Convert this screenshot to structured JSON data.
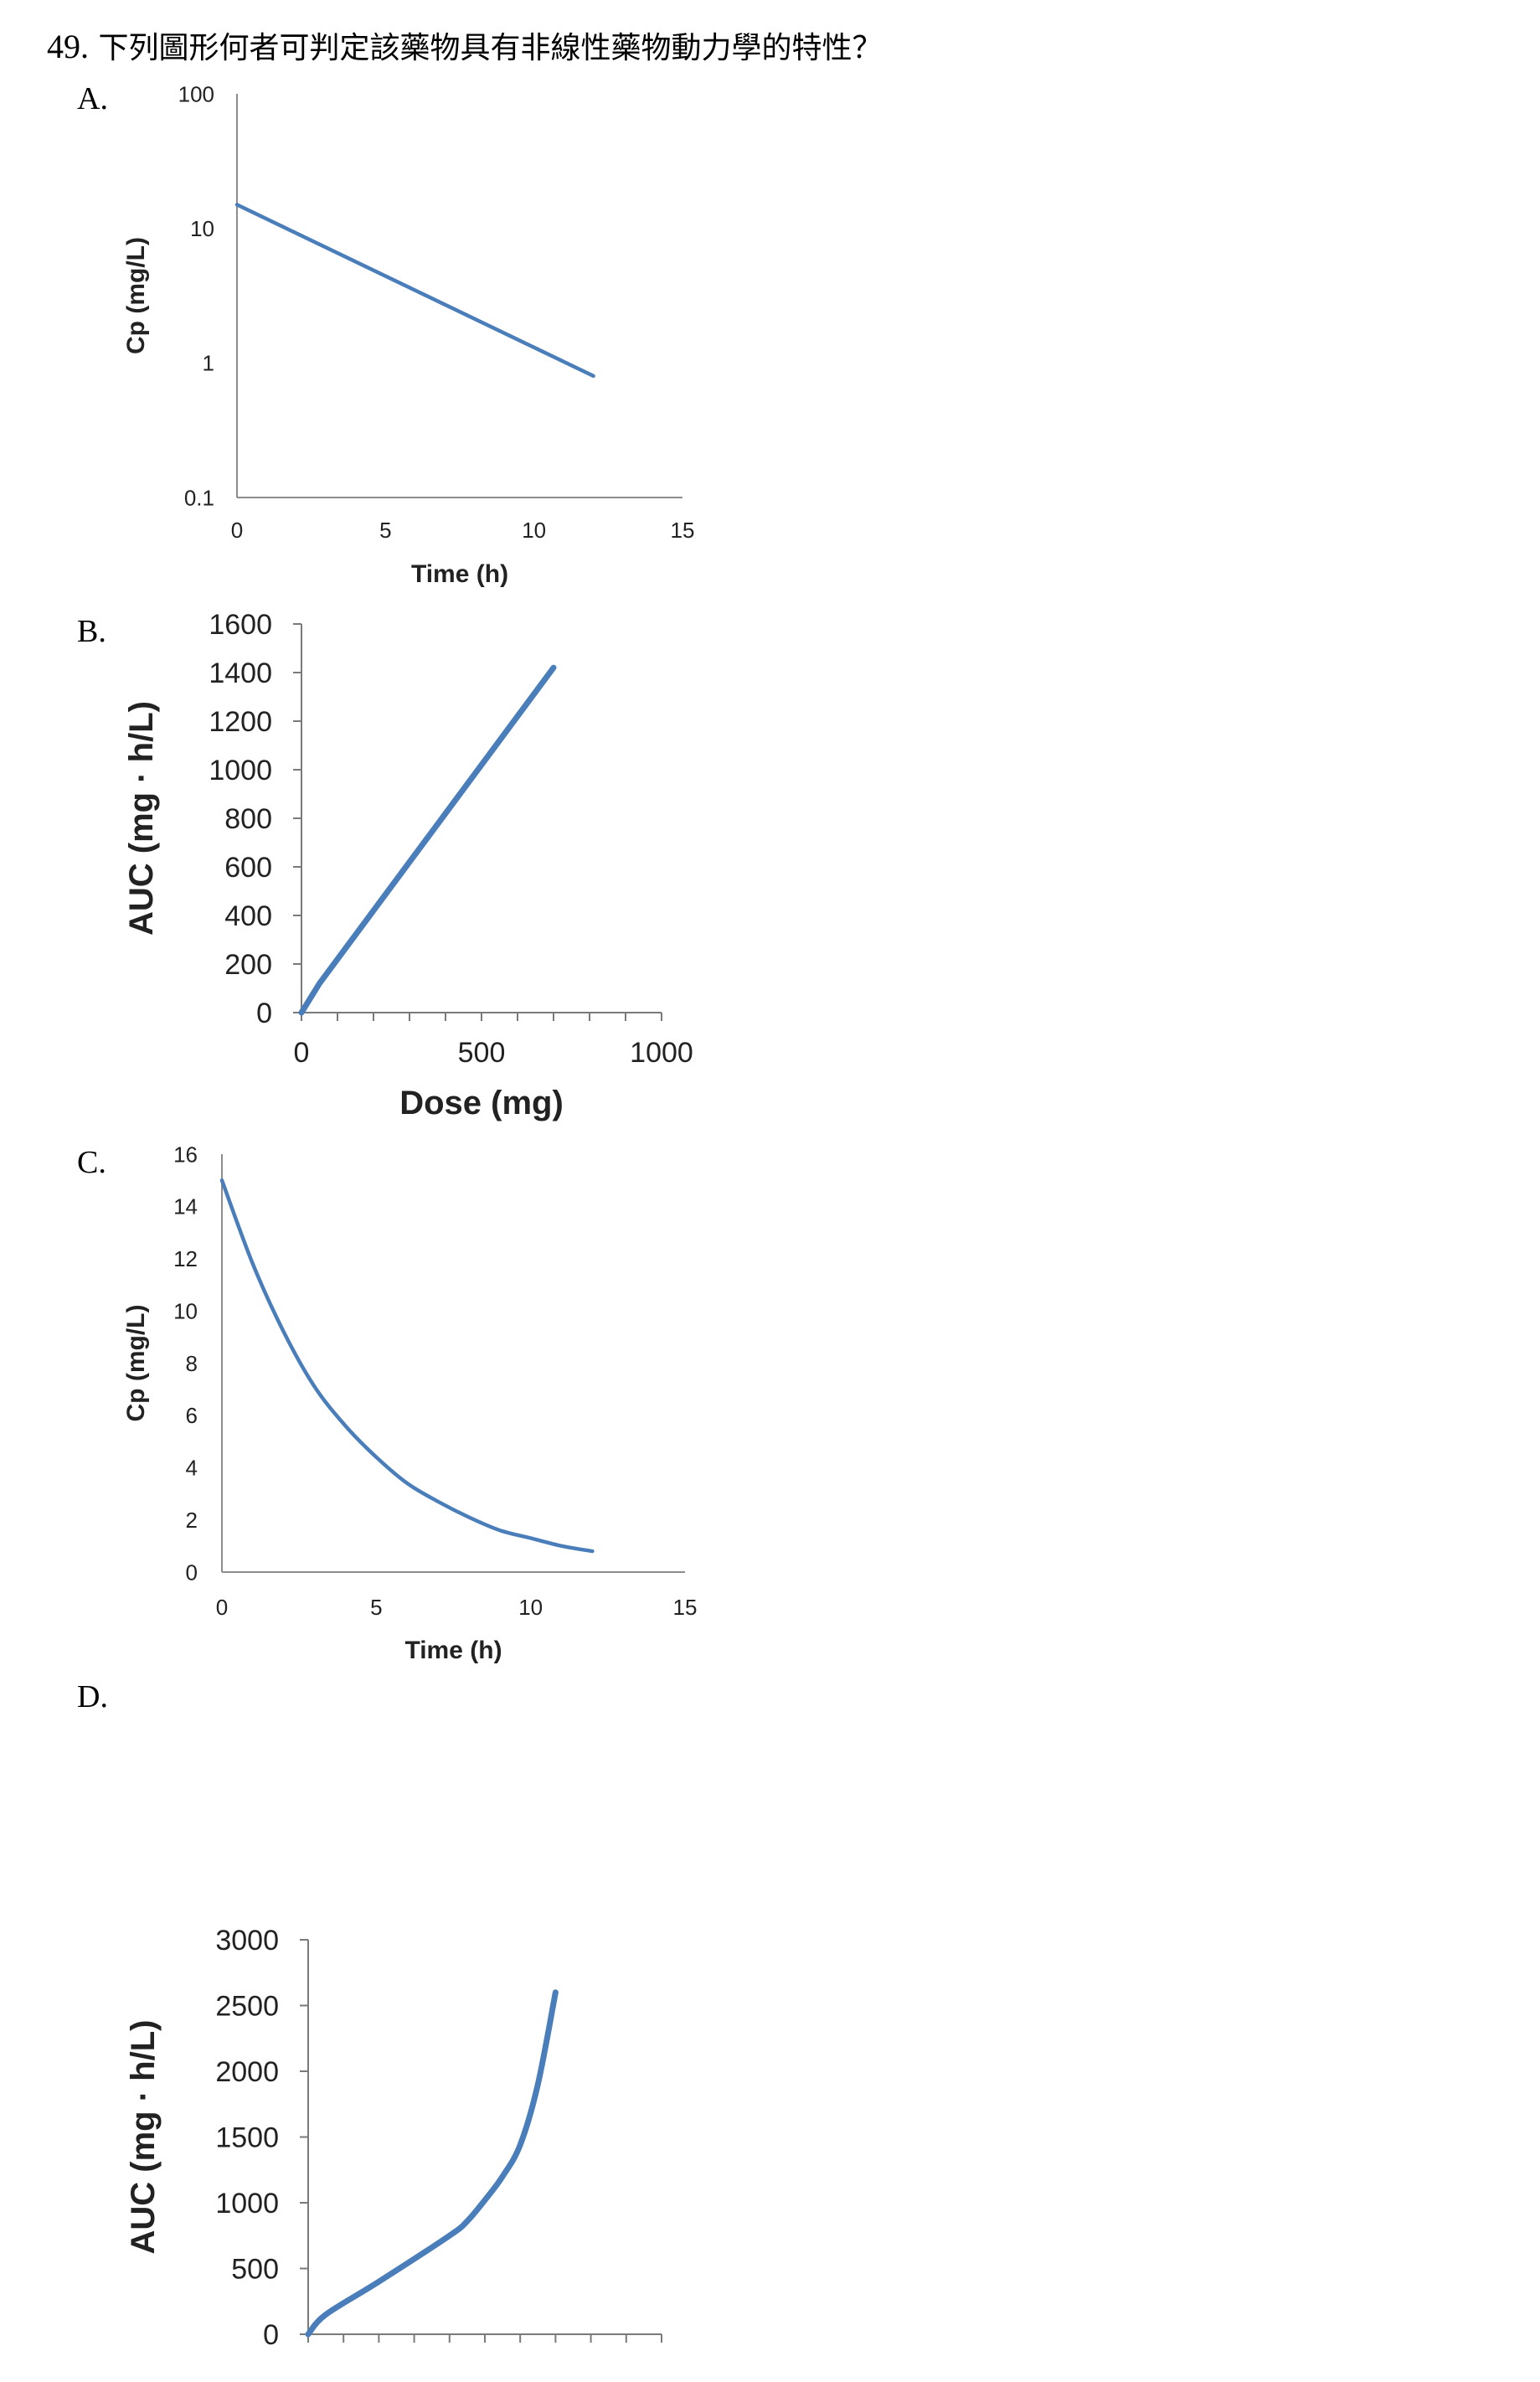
{
  "question": {
    "number": "49.",
    "text": "下列圖形何者可判定該藥物具有非線性藥物動力學的特性？"
  },
  "options": [
    {
      "label": "A."
    },
    {
      "label": "B."
    },
    {
      "label": "C."
    },
    {
      "label": "D."
    }
  ],
  "colors": {
    "series": "#4a7ebb",
    "axis": "#8c8c8c"
  },
  "chart_data": [
    {
      "option": "A.",
      "type": "line",
      "title": "",
      "xlabel": "Time (h)",
      "ylabel": "Cp (mg/L)",
      "yscale": "log",
      "xlim": [
        0,
        15
      ],
      "ylim": [
        0.1,
        100
      ],
      "x_ticks": [
        "0",
        "5",
        "10",
        "15"
      ],
      "y_ticks": [
        "0.1",
        "1",
        "10",
        "100"
      ],
      "grid": false,
      "series": [
        {
          "x": [
            0,
            12
          ],
          "y": [
            15,
            0.8
          ]
        }
      ]
    },
    {
      "option": "B.",
      "type": "line",
      "title": "",
      "xlabel": "Dose (mg)",
      "ylabel": "AUC (mg · h/L)",
      "yscale": "linear",
      "xlim": [
        0,
        1000
      ],
      "ylim": [
        0,
        1600
      ],
      "x_ticks": [
        "0",
        "500",
        "1000"
      ],
      "y_ticks": [
        "0",
        "200",
        "400",
        "600",
        "800",
        "1000",
        "1200",
        "1400",
        "1600"
      ],
      "grid": false,
      "series": [
        {
          "x": [
            0,
            50,
            700
          ],
          "y": [
            0,
            120,
            1420
          ]
        }
      ]
    },
    {
      "option": "C.",
      "type": "line",
      "title": "",
      "xlabel": "Time (h)",
      "ylabel": "Cp (mg/L)",
      "yscale": "linear",
      "xlim": [
        0,
        15
      ],
      "ylim": [
        0,
        16
      ],
      "x_ticks": [
        "0",
        "5",
        "10",
        "15"
      ],
      "y_ticks": [
        "0",
        "2",
        "4",
        "6",
        "8",
        "10",
        "12",
        "14",
        "16"
      ],
      "grid": false,
      "series": [
        {
          "x": [
            0,
            1,
            2,
            3,
            4,
            5,
            6,
            7,
            8,
            9,
            10,
            11,
            12
          ],
          "y": [
            15,
            11.8,
            9.2,
            7.1,
            5.6,
            4.4,
            3.4,
            2.7,
            2.1,
            1.6,
            1.3,
            1.0,
            0.8
          ]
        }
      ]
    },
    {
      "option": "D.",
      "type": "line",
      "title": "",
      "xlabel": "",
      "ylabel": "AUC (mg · h/L)",
      "yscale": "linear",
      "xlim": [
        0,
        1000
      ],
      "ylim": [
        0,
        3000
      ],
      "x_ticks": [],
      "y_ticks": [
        "0",
        "500",
        "1000",
        "1500",
        "2000",
        "2500",
        "3000"
      ],
      "grid": false,
      "series": [
        {
          "x": [
            0,
            50,
            200,
            400,
            450,
            500,
            550,
            600,
            650,
            700
          ],
          "y": [
            0,
            150,
            400,
            750,
            860,
            1020,
            1200,
            1440,
            1900,
            2600
          ]
        }
      ]
    }
  ]
}
